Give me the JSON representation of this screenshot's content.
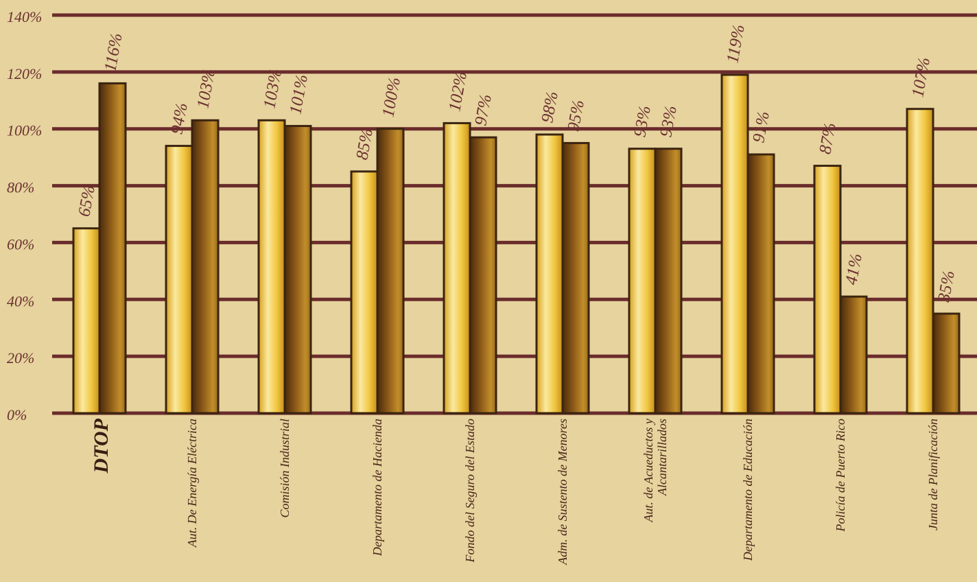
{
  "chart_data": {
    "type": "bar",
    "title": "",
    "xlabel": "",
    "ylabel": "",
    "ylim": [
      0,
      140
    ],
    "y_ticks": [
      "0%",
      "20%",
      "40%",
      "60%",
      "80%",
      "100%",
      "120%",
      "140%"
    ],
    "grid": true,
    "legend": "none",
    "categories": [
      [
        "DTOP"
      ],
      [
        "Aut. De Energía Eléctrica"
      ],
      [
        "Comisión Industrial"
      ],
      [
        "Departamento de Hacienda"
      ],
      [
        "Fondo del Seguro del Estado"
      ],
      [
        "Adm. de Sustento de Menores"
      ],
      [
        "Aut. de Acueductos y",
        "Alcantarillados"
      ],
      [
        "Departamento de Educación"
      ],
      [
        "Policía de Puerto Rico"
      ],
      [
        "Junta de Planificación"
      ]
    ],
    "emphasized_category": "DTOP",
    "series": [
      {
        "values": [
          65,
          94,
          103,
          85,
          102,
          98,
          93,
          119,
          87,
          107
        ],
        "labels": [
          "65%",
          "94%",
          "103%",
          "85%",
          "102%",
          "98%",
          "93%",
          "119%",
          "87%",
          "107%"
        ],
        "color": "#e8b830"
      },
      {
        "values": [
          116,
          103,
          101,
          100,
          97,
          95,
          93,
          91,
          41,
          35
        ],
        "labels": [
          "116%",
          "103%",
          "101%",
          "100%",
          "97%",
          "95%",
          "93%",
          "91%",
          "41%",
          "35%"
        ],
        "color": "#a8741c"
      }
    ],
    "colors": {
      "background": "#e6d39e",
      "gridline": "#6b2c2c",
      "bar_outline": "#3b2410"
    }
  }
}
